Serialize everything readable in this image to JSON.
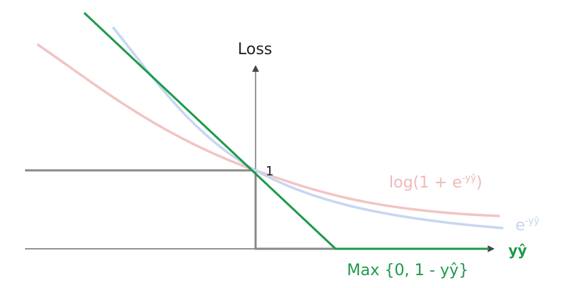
{
  "y_axis_label": "Loss",
  "one_label": "1",
  "x_axis_label": "yŷ",
  "logistic_label": {
    "base": "log(1 + e",
    "exponent": "-yŷ",
    "close": ")"
  },
  "exponential_label": {
    "base": "e",
    "exponent": "-yŷ"
  },
  "hinge_label": "Max {0, 1 - yŷ}"
}
